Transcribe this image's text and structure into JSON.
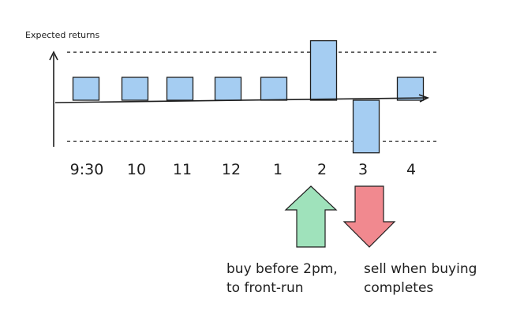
{
  "chart_data": {
    "type": "bar",
    "ylabel": "Expected returns",
    "categories": [
      "9:30",
      "10",
      "11",
      "12",
      "1",
      "2",
      "3",
      "4"
    ],
    "values": [
      1,
      1,
      1,
      1,
      1,
      2.6,
      -2.3,
      1
    ],
    "ylim": [
      -2.3,
      2.6
    ],
    "grid": false,
    "bar_color": "#a5cdf2",
    "bar_stroke": "#1e1e1e",
    "reference_lines": [
      2.1,
      -1.8
    ]
  },
  "annotations": {
    "buy": {
      "lines": [
        "buy before 2pm,",
        "to front-run"
      ],
      "category": "2",
      "direction": "up",
      "color": "#9fe2bb"
    },
    "sell": {
      "lines": [
        "sell when buying",
        "completes"
      ],
      "category": "3",
      "direction": "down",
      "color": "#f1898f"
    }
  }
}
